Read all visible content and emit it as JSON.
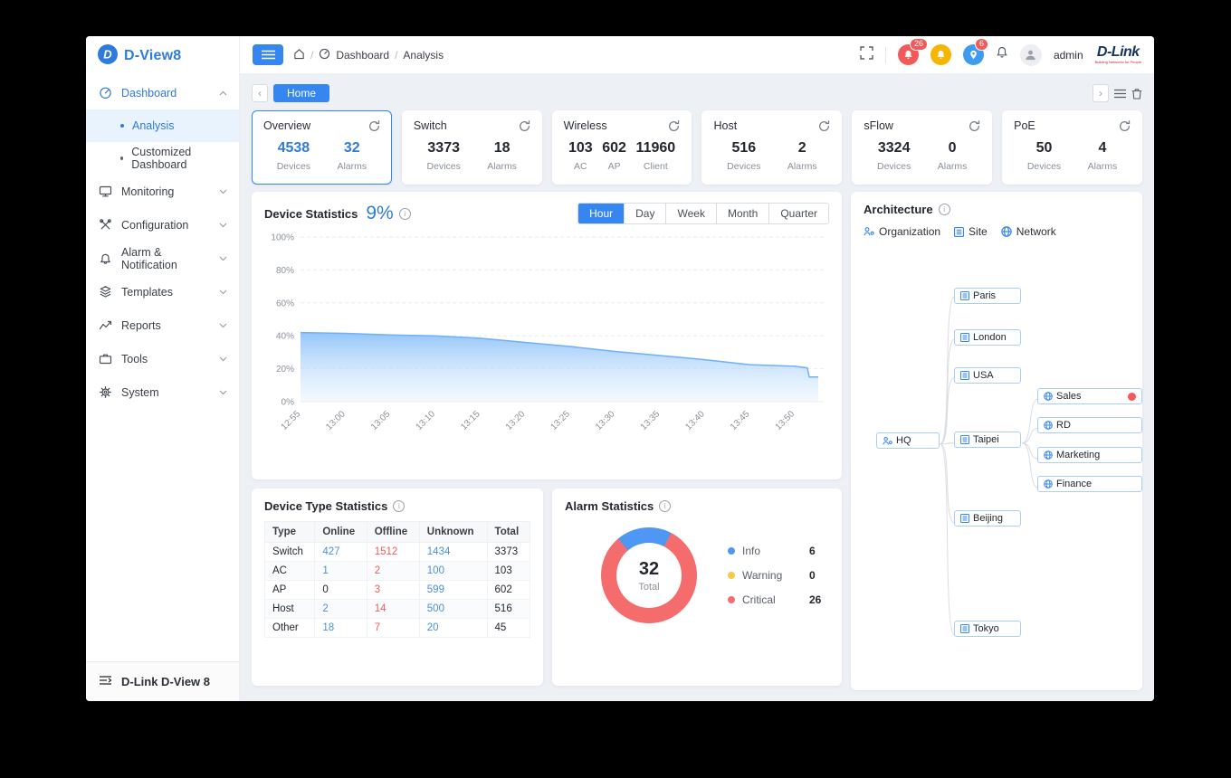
{
  "window": {
    "brand": "D-View8",
    "footer_label": "D-Link D-View 8"
  },
  "sidebar": {
    "sections": [
      {
        "label": "Dashboard"
      },
      {
        "label": "Monitoring"
      },
      {
        "label": "Configuration"
      },
      {
        "label": "Alarm & Notification"
      },
      {
        "label": "Templates"
      },
      {
        "label": "Reports"
      },
      {
        "label": "Tools"
      },
      {
        "label": "System"
      }
    ],
    "dashboard_children": [
      {
        "label": "Analysis",
        "active": true
      },
      {
        "label": "Customized Dashboard",
        "active": false
      }
    ]
  },
  "header": {
    "breadcrumb": [
      "Dashboard",
      "Analysis"
    ],
    "user": "admin",
    "alarm_badge": "26",
    "location_badge": "6",
    "logo_text": "D-Link",
    "logo_tagline": "Building Networks for People"
  },
  "tabbar": {
    "active_tab": "Home"
  },
  "summary_cards": [
    {
      "title": "Overview",
      "active": true,
      "stats": [
        {
          "value": "4538",
          "label": "Devices"
        },
        {
          "value": "32",
          "label": "Alarms"
        }
      ]
    },
    {
      "title": "Switch",
      "active": false,
      "stats": [
        {
          "value": "3373",
          "label": "Devices"
        },
        {
          "value": "18",
          "label": "Alarms"
        }
      ]
    },
    {
      "title": "Wireless",
      "active": false,
      "stats": [
        {
          "value": "103",
          "label": "AC"
        },
        {
          "value": "602",
          "label": "AP"
        },
        {
          "value": "11960",
          "label": "Client"
        }
      ]
    },
    {
      "title": "Host",
      "active": false,
      "stats": [
        {
          "value": "516",
          "label": "Devices"
        },
        {
          "value": "2",
          "label": "Alarms"
        }
      ]
    },
    {
      "title": "sFlow",
      "active": false,
      "stats": [
        {
          "value": "3324",
          "label": "Devices"
        },
        {
          "value": "0",
          "label": "Alarms"
        }
      ]
    },
    {
      "title": "PoE",
      "active": false,
      "stats": [
        {
          "value": "50",
          "label": "Devices"
        },
        {
          "value": "4",
          "label": "Alarms"
        }
      ]
    }
  ],
  "device_statistics": {
    "title": "Device Statistics",
    "percent": "9%",
    "tabs": [
      "Hour",
      "Day",
      "Week",
      "Month",
      "Quarter"
    ],
    "active_tab": "Hour"
  },
  "chart_data": [
    {
      "type": "area",
      "title": "Device Statistics",
      "x": [
        "12:55",
        "13:00",
        "13:05",
        "13:10",
        "13:15",
        "13:20",
        "13:25",
        "13:30",
        "13:35",
        "13:40",
        "13:45",
        "13:50"
      ],
      "values": [
        42,
        41.5,
        40.5,
        40,
        38.5,
        36,
        33.5,
        30.5,
        28,
        25.5,
        22.5,
        21.5
      ],
      "end_value": 15,
      "y_ticks": [
        0,
        20,
        40,
        60,
        80,
        100
      ],
      "ylim": [
        0,
        100
      ],
      "grid": "dashed-horizontal"
    },
    {
      "type": "pie",
      "title": "Alarm Statistics",
      "categories": [
        "Info",
        "Warning",
        "Critical"
      ],
      "values": [
        6,
        0,
        26
      ],
      "total": 32
    }
  ],
  "device_type_statistics": {
    "title": "Device Type Statistics",
    "columns": [
      "Type",
      "Online",
      "Offline",
      "Unknown",
      "Total"
    ],
    "rows": [
      [
        "Switch",
        "427",
        "1512",
        "1434",
        "3373"
      ],
      [
        "AC",
        "1",
        "2",
        "100",
        "103"
      ],
      [
        "AP",
        "0",
        "3",
        "599",
        "602"
      ],
      [
        "Host",
        "2",
        "14",
        "500",
        "516"
      ],
      [
        "Other",
        "18",
        "7",
        "20",
        "45"
      ]
    ]
  },
  "alarm_statistics": {
    "title": "Alarm Statistics",
    "total_value": "32",
    "total_label": "Total",
    "legend": [
      {
        "label": "Info",
        "value": "6",
        "color": "#4e97f3"
      },
      {
        "label": "Warning",
        "value": "0",
        "color": "#f7c948"
      },
      {
        "label": "Critical",
        "value": "26",
        "color": "#f56c6c"
      }
    ]
  },
  "architecture": {
    "title": "Architecture",
    "views": [
      "Organization",
      "Site",
      "Network"
    ],
    "root": "HQ",
    "sites": [
      "Paris",
      "London",
      "USA",
      "Taipei",
      "Beijing",
      "Tokyo"
    ],
    "taipei_children": [
      "Sales",
      "RD",
      "Marketing",
      "Finance"
    ]
  },
  "colors": {
    "primary": "#3586f0",
    "critical": "#f56c6c",
    "warning": "#f7c948",
    "info": "#4e97f3"
  }
}
